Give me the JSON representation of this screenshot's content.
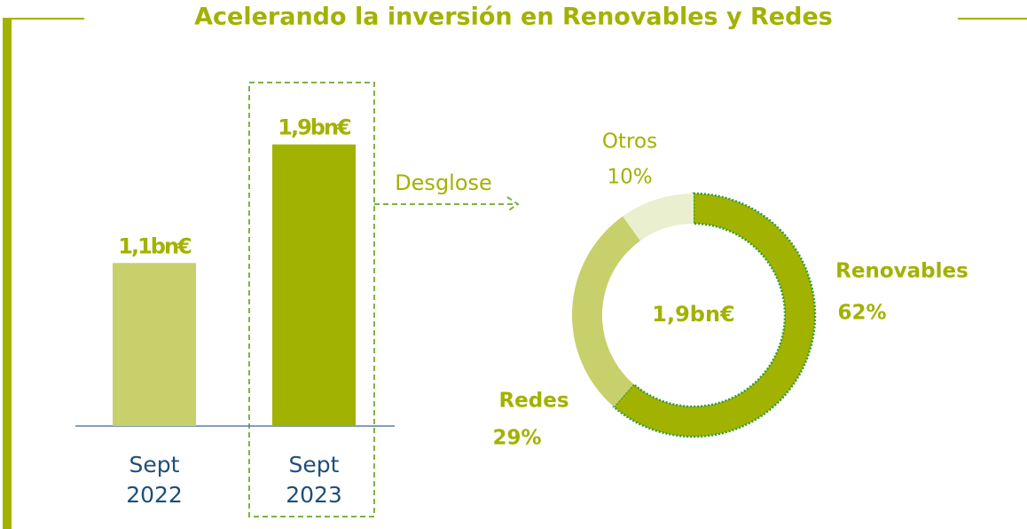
{
  "title": "Acelerando la inversión en Renovables y Redes",
  "chart_data": [
    {
      "type": "bar",
      "categories": [
        "Sept 2022",
        "Sept 2023"
      ],
      "values": [
        1.1,
        1.9
      ],
      "value_labels": [
        "1,1bn€",
        "1,9bn€"
      ],
      "colors": [
        "#c8d06c",
        "#a2b200"
      ],
      "annotation": "Desglose"
    },
    {
      "type": "donut",
      "categories": [
        "Renovables",
        "Redes",
        "Otros"
      ],
      "values": [
        62,
        29,
        10
      ],
      "value_labels": [
        "62%",
        "29%",
        "10%"
      ],
      "colors": [
        "#a2b200",
        "#c8d06c",
        "#eaefcf"
      ],
      "center_label": "1,9bn€"
    }
  ]
}
